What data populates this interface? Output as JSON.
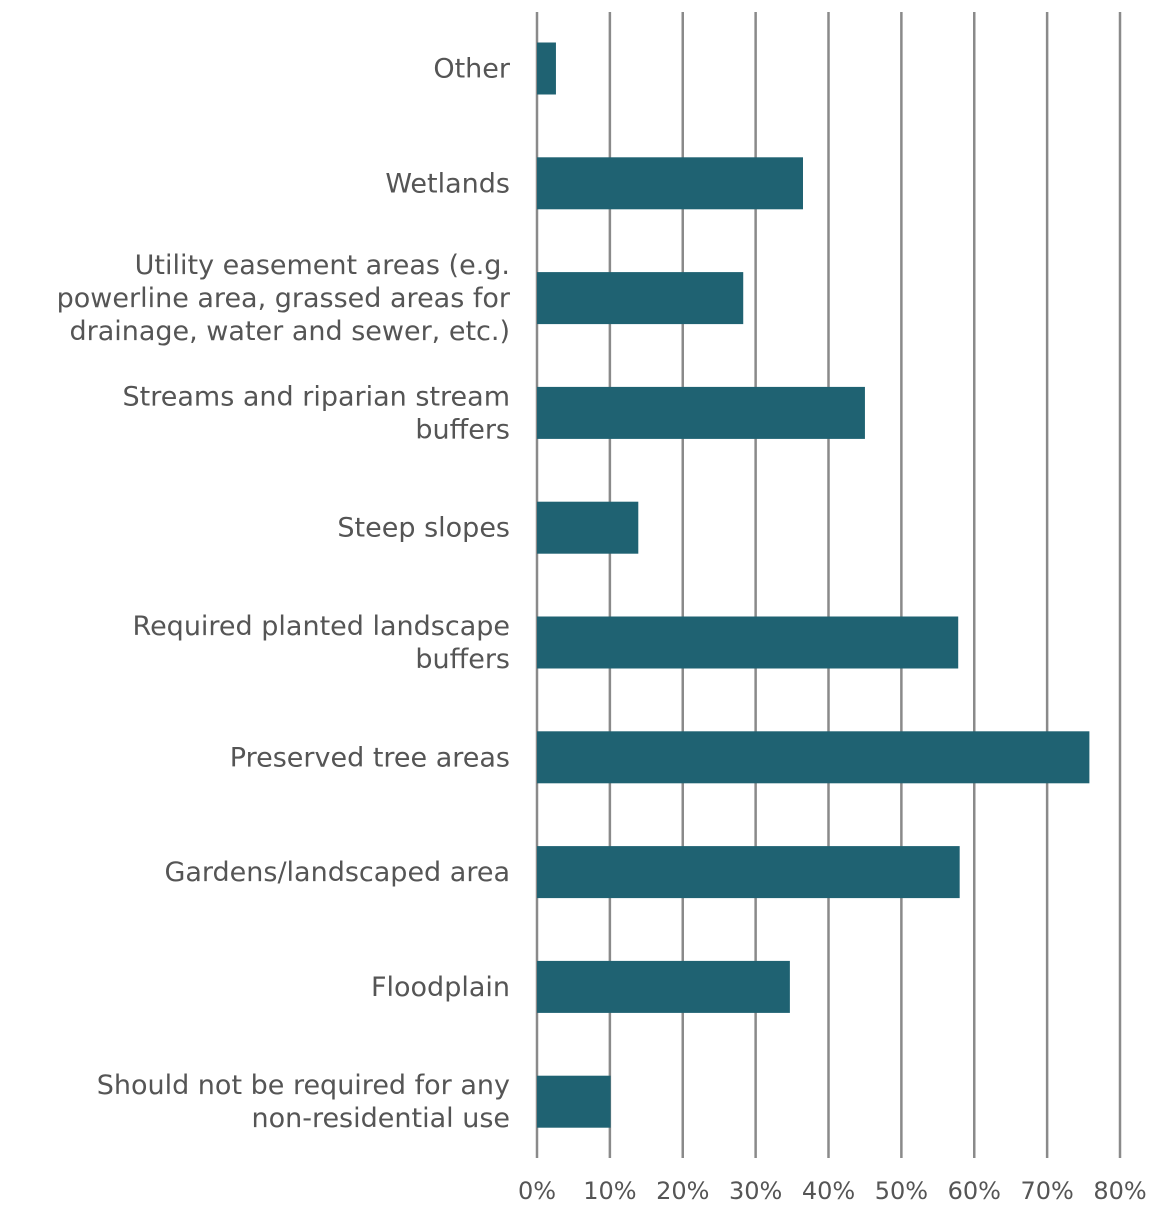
{
  "chart_data": {
    "type": "bar",
    "orientation": "horizontal",
    "categories": [
      [
        "Other"
      ],
      [
        "Wetlands"
      ],
      [
        "Utility easement areas (e.g.",
        "powerline area, grassed areas for",
        "drainage, water and sewer, etc.)"
      ],
      [
        "Streams and riparian stream",
        "buffers"
      ],
      [
        "Steep slopes"
      ],
      [
        "Required planted landscape",
        "buffers"
      ],
      [
        "Preserved tree areas"
      ],
      [
        "Gardens/landscaped area"
      ],
      [
        "Floodplain"
      ],
      [
        "Should not be required for any",
        "non-residential use"
      ]
    ],
    "values": [
      2.6,
      36.5,
      28.3,
      45.0,
      13.9,
      57.8,
      75.8,
      58.0,
      34.7,
      10.1
    ],
    "xlim": [
      0,
      80
    ],
    "xticks": [
      "0%",
      "10%",
      "20%",
      "30%",
      "40%",
      "50%",
      "60%",
      "70%",
      "80%"
    ],
    "title": "",
    "xlabel": "",
    "ylabel": "",
    "grid": "vertical",
    "legend": "none",
    "bar_color": "#1f6272",
    "grid_color": "#8a8a8a",
    "text_color": "#555555"
  }
}
